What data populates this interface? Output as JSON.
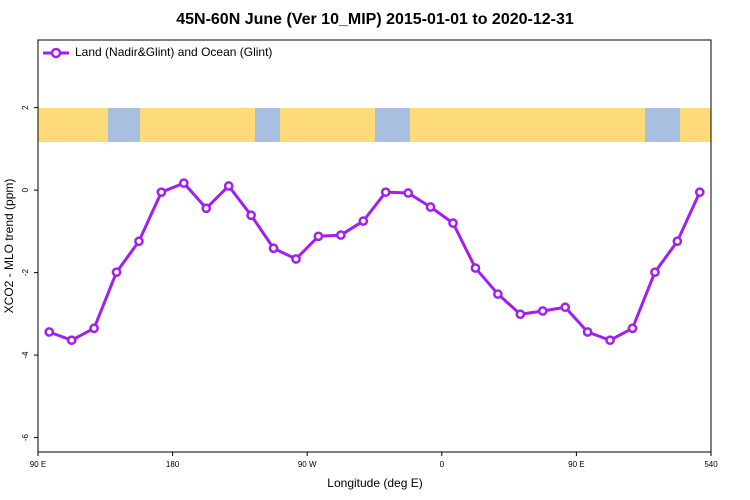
{
  "chart_data": {
    "type": "line",
    "title": "45N-60N June (Ver 10_MIP)   2015-01-01 to 2020-12-31",
    "x_label": "Longitude (deg E)",
    "y_label": "XCO2 - MLO trend (ppm)",
    "x": [
      97.5,
      112.5,
      127.5,
      142.5,
      157.5,
      172.5,
      187.5,
      202.5,
      217.5,
      232.5,
      247.5,
      262.5,
      277.5,
      292.5,
      307.5,
      322.5,
      337.5,
      352.5,
      367.5,
      382.5,
      397.5,
      412.5,
      427.5,
      442.5,
      457.5,
      472.5,
      487.5,
      502.5,
      517.5,
      532.5
    ],
    "series": [
      {
        "name": "Land (Nadir&Glint) and Ocean (Glint)",
        "color": "#a020f0",
        "values": [
          -3.44,
          -3.64,
          -3.35,
          -1.99,
          -1.24,
          -0.05,
          0.17,
          -0.44,
          0.1,
          -0.61,
          -1.41,
          -1.67,
          -1.12,
          -1.09,
          -0.75,
          -0.05,
          -0.07,
          -0.41,
          -0.8,
          -1.89,
          -2.52,
          -3.01,
          -2.93,
          -2.84,
          -3.44,
          -3.64,
          -3.35,
          -1.99,
          -1.24,
          -0.05
        ]
      }
    ],
    "xlim": [
      90,
      540
    ],
    "xticks": [
      {
        "value": 90,
        "label": "90 E"
      },
      180,
      {
        "value": 270,
        "label": "90 W"
      },
      {
        "value": 360,
        "label": "0"
      },
      {
        "value": 450,
        "label": "90 E"
      },
      540
    ],
    "ylim": [
      -6.35,
      3.64
    ],
    "yticks": [
      2,
      0,
      -2,
      -4,
      -6
    ],
    "legend_position": "top-left"
  }
}
